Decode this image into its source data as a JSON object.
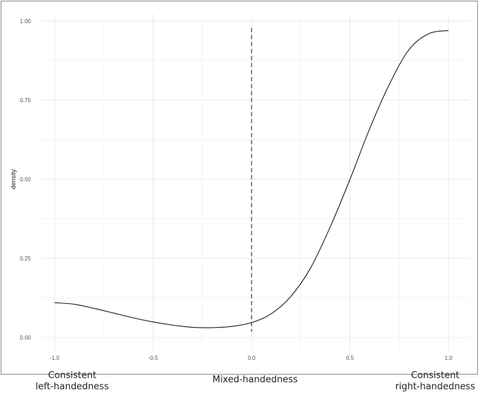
{
  "chart_data": {
    "type": "line",
    "ylabel": "density",
    "xlim": [
      -1.0,
      1.0
    ],
    "ylim": [
      0,
      1.0
    ],
    "x_ticks": [
      -1.0,
      -0.5,
      0.0,
      0.5,
      1.0
    ],
    "x_tick_labels": [
      "-1.0",
      "-0.5",
      "0.0",
      "0.5",
      "1.0"
    ],
    "y_ticks": [
      0,
      0.25,
      0.5,
      0.75,
      1.0
    ],
    "y_tick_labels": [
      "0.00",
      "0.25",
      "0.50",
      "0.75",
      "1.00"
    ],
    "grid": true,
    "reference_line": {
      "x": 0.0,
      "style": "dashed"
    },
    "series": [
      {
        "x": [
          -1.0,
          -0.9,
          -0.8,
          -0.7,
          -0.6,
          -0.5,
          -0.4,
          -0.3,
          -0.2,
          -0.1,
          0.0,
          0.1,
          0.2,
          0.3,
          0.4,
          0.5,
          0.6,
          0.7,
          0.8,
          0.9,
          1.0
        ],
        "y": [
          0.11,
          0.105,
          0.092,
          0.077,
          0.062,
          0.049,
          0.039,
          0.032,
          0.031,
          0.035,
          0.047,
          0.075,
          0.13,
          0.22,
          0.35,
          0.5,
          0.66,
          0.8,
          0.91,
          0.96,
          0.97
        ]
      }
    ],
    "annotations": {
      "left": [
        "Consistent",
        "left-handedness"
      ],
      "center": "Mixed-handedness",
      "right": [
        "Consistent",
        "right-handedness"
      ]
    }
  }
}
